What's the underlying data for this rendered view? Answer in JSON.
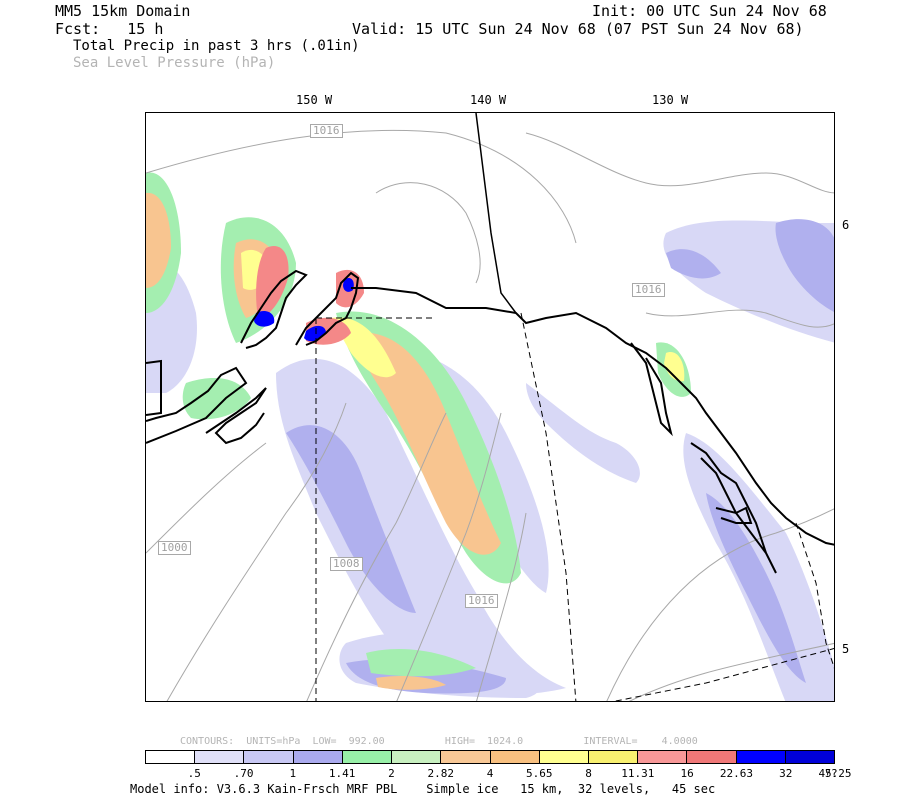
{
  "header": {
    "domain_title": "MM5 15km Domain",
    "init": "Init: 00 UTC Sun 24 Nov 68",
    "forecast": "Fcst:   15 h",
    "valid": "Valid: 15 UTC Sun 24 Nov 68 (07 PST Sun 24 Nov 68)",
    "field_primary": "Total Precip in past 3 hrs (.01in)",
    "field_secondary": "Sea Level Pressure (hPa)"
  },
  "map": {
    "longitude_labels": [
      "150 W",
      "140 W",
      "130 W"
    ],
    "latitude_labels": [
      "6",
      "5"
    ],
    "isobar_labels": [
      "1016",
      "1016",
      "1000",
      "1008",
      "1016"
    ]
  },
  "contour_info": {
    "text": "CONTOURS:  UNITS=hPa  LOW=  992.00          HIGH=  1024.0          INTERVAL=    4.0000"
  },
  "legend": {
    "colors": [
      "#ffffff",
      "#e0e0f8",
      "#c8c8f4",
      "#aaaaee",
      "#98f0a8",
      "#c8f0c0",
      "#f8c896",
      "#f8c080",
      "#ffff90",
      "#f8f070",
      "#f89898",
      "#f07878",
      "#0000ff",
      "#0000d8"
    ],
    "labels": [
      ".5",
      ".70",
      "1",
      "1.41",
      "2",
      "2.82",
      "4",
      "5.65",
      "8",
      "11.31",
      "16",
      "22.63",
      "32",
      "45.25",
      "??"
    ]
  },
  "footer": {
    "model_info": "Model info: V3.6.3 Kain-Frsch MRF PBL    Simple ice   15 km,  32 levels,   45 sec"
  }
}
